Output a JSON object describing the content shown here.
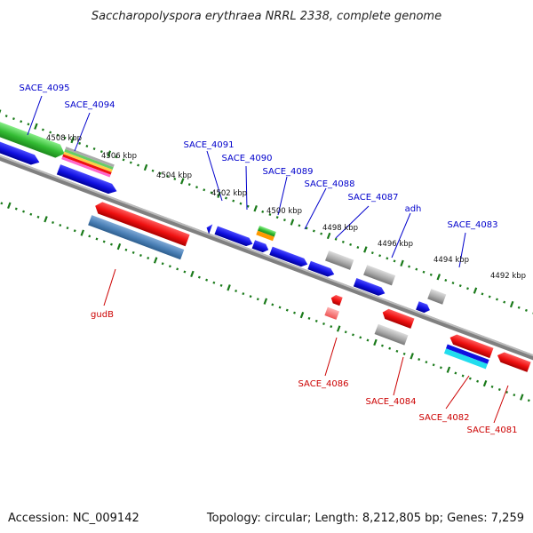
{
  "header": {
    "title": "Saccharopolyspora erythraea NRRL 2338, complete genome"
  },
  "footer": {
    "accession": "Accession: NC_009142",
    "summary": "Topology: circular; Length: 8,212,805 bp; Genes: 7,259"
  },
  "colors": {
    "backbone": "#777777",
    "forward_label": "#0000cc",
    "reverse_label": "#cc0000",
    "tick": "#1a7a1a",
    "blue": "#1010e0",
    "red": "#ee1010",
    "gray": "#a8a8a8",
    "green": "#33bb33",
    "orange": "#ff9900",
    "cyan": "#22ddee",
    "steel": "#4a7fb5"
  },
  "ticks": {
    "forward": [
      {
        "label": "4508 kbp"
      },
      {
        "label": "4506 kbp"
      },
      {
        "label": "4504 kbp"
      },
      {
        "label": "4502 kbp"
      },
      {
        "label": "4500 kbp"
      },
      {
        "label": "4498 kbp"
      },
      {
        "label": "4496 kbp"
      },
      {
        "label": "4494 kbp"
      },
      {
        "label": "4492 kbp"
      }
    ]
  },
  "genes": {
    "forward_labels": [
      {
        "name": "SACE_4095"
      },
      {
        "name": "SACE_4094"
      },
      {
        "name": "SACE_4091"
      },
      {
        "name": "SACE_4090"
      },
      {
        "name": "SACE_4089"
      },
      {
        "name": "SACE_4088"
      },
      {
        "name": "SACE_4087"
      },
      {
        "name": "adh"
      },
      {
        "name": "SACE_4083"
      }
    ],
    "reverse_labels": [
      {
        "name": "gudB"
      },
      {
        "name": "SACE_4086"
      },
      {
        "name": "SACE_4084"
      },
      {
        "name": "SACE_4082"
      },
      {
        "name": "SACE_4081"
      }
    ]
  }
}
